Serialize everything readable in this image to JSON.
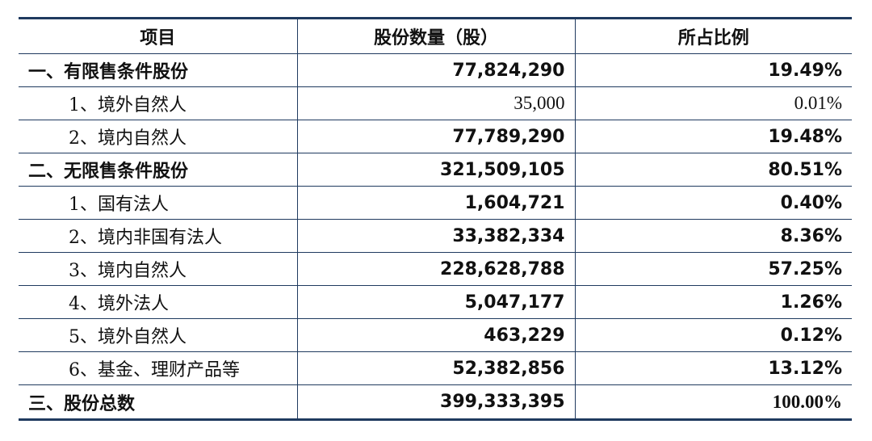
{
  "table": {
    "headers": [
      "项目",
      "股份数量（股）",
      "所占比例"
    ],
    "rows": [
      {
        "label": "一、有限售条件股份",
        "shares": "77,824,290",
        "ratio": "19.49%"
      },
      {
        "label": "1、境外自然人",
        "shares": "35,000",
        "ratio": "0.01%"
      },
      {
        "label": "2、境内自然人",
        "shares": "77,789,290",
        "ratio": "19.48%"
      },
      {
        "label": "二、无限售条件股份",
        "shares": "321,509,105",
        "ratio": "80.51%"
      },
      {
        "label": "1、国有法人",
        "shares": "1,604,721",
        "ratio": "0.40%"
      },
      {
        "label": "2、境内非国有法人",
        "shares": "33,382,334",
        "ratio": "8.36%"
      },
      {
        "label": "3、境内自然人",
        "shares": "228,628,788",
        "ratio": "57.25%"
      },
      {
        "label": "4、境外法人",
        "shares": "5,047,177",
        "ratio": "1.26%"
      },
      {
        "label": "5、境外自然人",
        "shares": "463,229",
        "ratio": "0.12%"
      },
      {
        "label": "6、基金、理财产品等",
        "shares": "52,382,856",
        "ratio": "13.12%"
      },
      {
        "label": "三、股份总数",
        "shares": "399,333,395",
        "ratio": "100.00%"
      }
    ]
  }
}
